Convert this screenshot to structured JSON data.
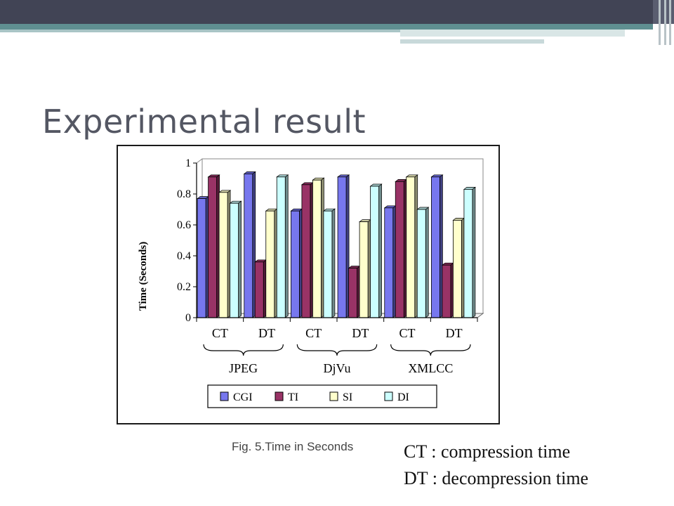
{
  "slide": {
    "title": "Experimental result"
  },
  "figure": {
    "caption": "Fig. 5.Time in Seconds"
  },
  "notes": [
    "CT : compression time",
    "DT : decompression time"
  ],
  "chart_data": {
    "type": "bar",
    "ylabel": "Time (Seconds)",
    "ylim": [
      0,
      1
    ],
    "yticks": [
      "0",
      "0.2",
      "0.4",
      "0.6",
      "0.8",
      "1"
    ],
    "categories": [
      "CT",
      "DT",
      "CT",
      "DT",
      "CT",
      "DT"
    ],
    "groups": [
      "JPEG",
      "DjVu",
      "XMLCC"
    ],
    "series": [
      {
        "name": "CGI",
        "color": "#7777ee",
        "values": [
          0.77,
          0.93,
          0.69,
          0.91,
          0.71,
          0.91
        ]
      },
      {
        "name": "TI",
        "color": "#993366",
        "values": [
          0.91,
          0.36,
          0.86,
          0.32,
          0.88,
          0.34
        ]
      },
      {
        "name": "SI",
        "color": "#ffffcc",
        "values": [
          0.81,
          0.69,
          0.89,
          0.62,
          0.91,
          0.63
        ]
      },
      {
        "name": "DI",
        "color": "#ccffff",
        "values": [
          0.74,
          0.91,
          0.69,
          0.85,
          0.7,
          0.83
        ]
      }
    ],
    "legend_position": "bottom",
    "grid": false
  }
}
